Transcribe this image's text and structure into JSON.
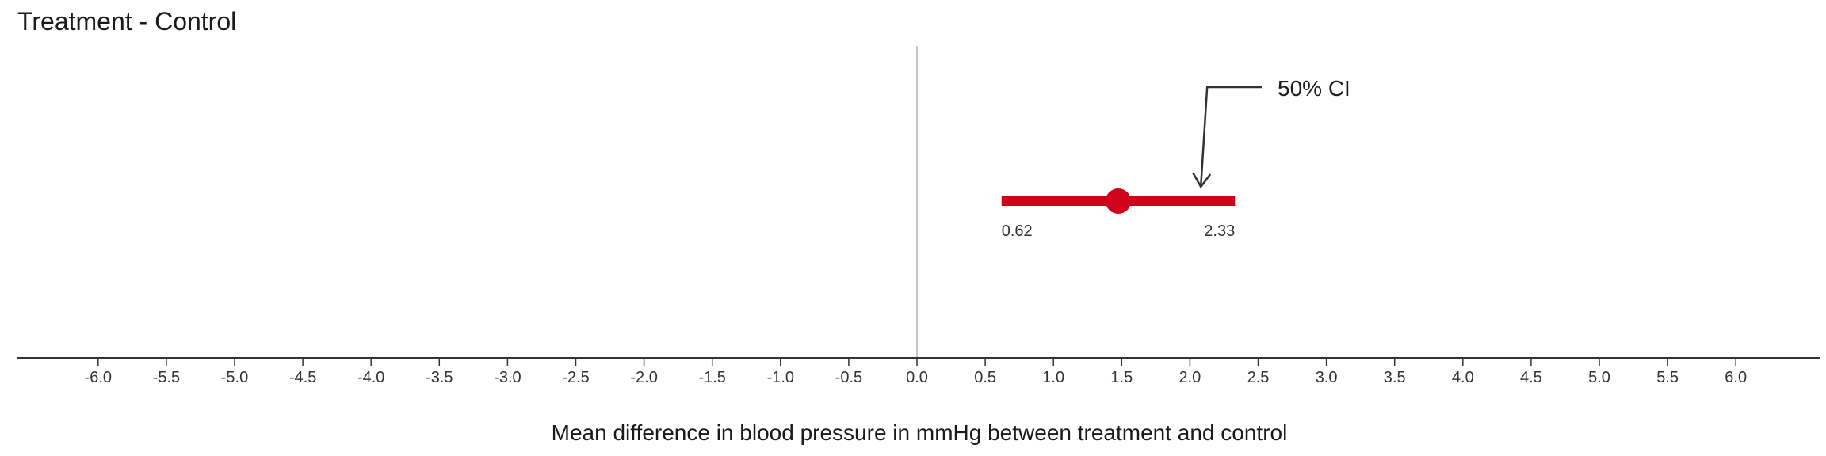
{
  "chart_data": {
    "type": "interval",
    "title": "Treatment - Control",
    "xlabel": "Mean difference in blood pressure in mmHg between treatment and control",
    "ylabel": "",
    "xlim": [
      -6.6,
      6.6
    ],
    "ticks": [
      "-6.0",
      "-5.5",
      "-5.0",
      "-4.5",
      "-4.0",
      "-3.5",
      "-3.0",
      "-2.5",
      "-2.0",
      "-1.5",
      "-1.0",
      "-0.5",
      "0.0",
      "0.5",
      "1.0",
      "1.5",
      "2.0",
      "2.5",
      "3.0",
      "3.5",
      "4.0",
      "4.5",
      "5.0",
      "5.5",
      "6.0"
    ],
    "reference_line": 0,
    "estimate": 1.475,
    "ci_lower": 0.62,
    "ci_upper": 2.33,
    "ci_lower_label": "0.62",
    "ci_upper_label": "2.33",
    "annotation": {
      "text": "50% CI",
      "points_to": 2.08
    },
    "grid": false
  },
  "colors": {
    "interval": "#d0021b",
    "axis": "#333333",
    "reference_line": "#c8c8c8",
    "text": "#1a1a1a"
  }
}
